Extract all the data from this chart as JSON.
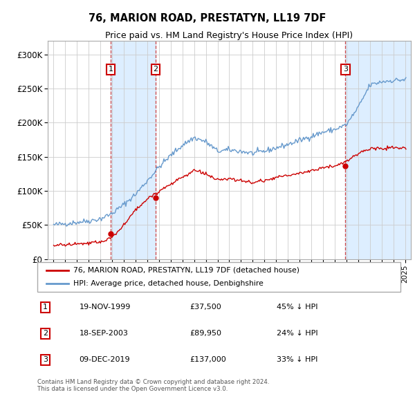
{
  "title": "76, MARION ROAD, PRESTATYN, LL19 7DF",
  "subtitle": "Price paid vs. HM Land Registry's House Price Index (HPI)",
  "ylim": [
    0,
    320000
  ],
  "yticks": [
    0,
    50000,
    100000,
    150000,
    200000,
    250000,
    300000
  ],
  "ytick_labels": [
    "£0",
    "£50K",
    "£100K",
    "£150K",
    "£200K",
    "£250K",
    "£300K"
  ],
  "sale_dates_num": [
    1999.88,
    2003.71,
    2019.92
  ],
  "sale_prices": [
    37500,
    89950,
    137000
  ],
  "sale_labels": [
    "1",
    "2",
    "3"
  ],
  "sale_color": "#cc0000",
  "hpi_color": "#6699cc",
  "shade_color": "#ddeeff",
  "vline_color": "#cc4444",
  "legend_sale_label": "76, MARION ROAD, PRESTATYN, LL19 7DF (detached house)",
  "legend_hpi_label": "HPI: Average price, detached house, Denbighshire",
  "table_entries": [
    [
      "1",
      "19-NOV-1999",
      "£37,500",
      "45% ↓ HPI"
    ],
    [
      "2",
      "18-SEP-2003",
      "£89,950",
      "24% ↓ HPI"
    ],
    [
      "3",
      "09-DEC-2019",
      "£137,000",
      "33% ↓ HPI"
    ]
  ],
  "footer": "Contains HM Land Registry data © Crown copyright and database right 2024.\nThis data is licensed under the Open Government Licence v3.0.",
  "xmin": 1994.5,
  "xmax": 2025.5,
  "hpi_anchors_x": [
    1995,
    1996,
    1997,
    1998,
    1999,
    2000,
    2001,
    2002,
    2003,
    2004,
    2005,
    2006,
    2007,
    2008,
    2009,
    2010,
    2011,
    2012,
    2013,
    2014,
    2015,
    2016,
    2017,
    2018,
    2019,
    2020,
    2021,
    2022,
    2023,
    2024,
    2025
  ],
  "hpi_anchors_y": [
    50000,
    52000,
    54000,
    56000,
    59000,
    67000,
    80000,
    95000,
    115000,
    135000,
    152000,
    167000,
    178000,
    172000,
    158000,
    160000,
    158000,
    155000,
    158000,
    163000,
    168000,
    174000,
    180000,
    186000,
    190000,
    197000,
    222000,
    255000,
    260000,
    262000,
    263000
  ],
  "red_anchors_x": [
    1995,
    1996,
    1997,
    1998,
    1999,
    2000,
    2001,
    2002,
    2003,
    2004,
    2005,
    2006,
    2007,
    2008,
    2009,
    2010,
    2011,
    2012,
    2013,
    2014,
    2015,
    2016,
    2017,
    2018,
    2019,
    2020,
    2021,
    2022,
    2023,
    2024,
    2025
  ],
  "red_anchors_y": [
    20000,
    21000,
    22000,
    23000,
    25000,
    32000,
    50000,
    72000,
    88000,
    100000,
    110000,
    120000,
    130000,
    125000,
    115000,
    118000,
    115000,
    112000,
    115000,
    120000,
    122000,
    126000,
    130000,
    134000,
    137000,
    143000,
    155000,
    162000,
    162000,
    163000,
    163000
  ],
  "noise_seed": 42,
  "hpi_noise_std": 2000,
  "red_noise_std": 1200
}
